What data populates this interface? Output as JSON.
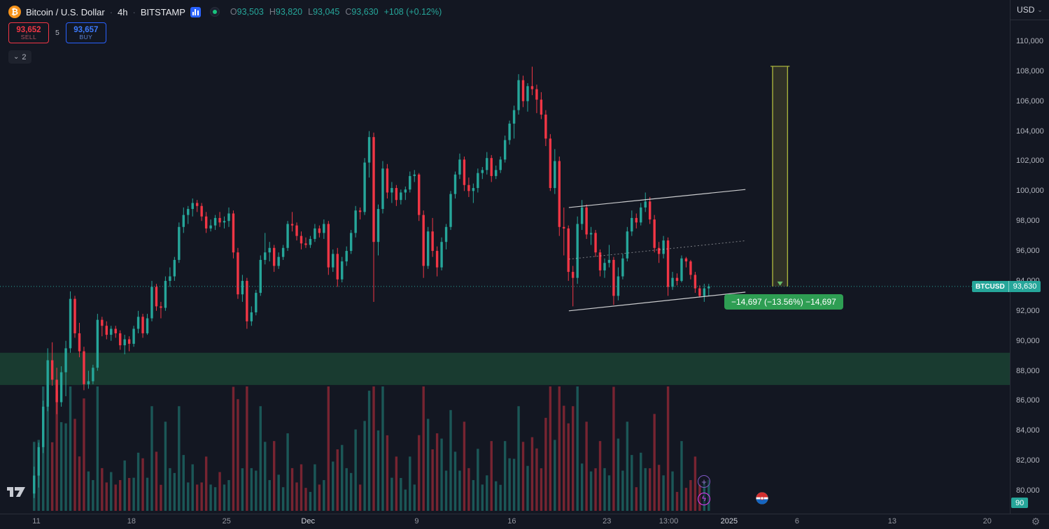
{
  "header": {
    "symbol": "Bitcoin / U.S. Dollar",
    "interval": "4h",
    "exchange": "BITSTAMP",
    "separator": "·",
    "ohlc": {
      "o_label": "O",
      "o": "93,503",
      "h_label": "H",
      "h": "93,820",
      "l_label": "L",
      "l": "93,045",
      "c_label": "C",
      "c": "93,630",
      "change": "+108 (+0.12%)"
    }
  },
  "order_panel": {
    "sell_price": "93,652",
    "sell_label": "SELL",
    "spread": "5",
    "buy_price": "93,657",
    "buy_label": "BUY"
  },
  "drawings_badge": {
    "chevron": "⌄",
    "count": "2"
  },
  "top_right": {
    "currency": "USD",
    "chevron": "⌄"
  },
  "price_label": {
    "symbol": "BTCUSD",
    "price": "93,630"
  },
  "volume_label": "90",
  "measure_label": {
    "text": "−14,697 (−13.56%)  −14,697"
  },
  "icons": {
    "bitcoin": "₿",
    "gear": "⚙",
    "plus": "+",
    "lightning": "ϟ"
  },
  "colors": {
    "background": "#131722",
    "up": "#26a69a",
    "down": "#f23645",
    "vol_up": "rgba(38,166,154,0.45)",
    "vol_down": "rgba(242,54,69,0.45)",
    "zone_fill": "rgba(46,160,87,0.27)",
    "channel_line": "rgba(255,255,255,0.78)",
    "channel_mid": "rgba(255,255,255,0.45)",
    "price_line": "#26a69a",
    "measure_fill": "rgba(167,157,61,0.20)",
    "measure_line": "#a8b23c",
    "measure_arrow": "#66bb6a",
    "sell_red": "#f23645",
    "buy_blue": "#2962ff",
    "label_teal": "#26a69a",
    "measure_label_bg": "#2e9e53"
  },
  "price_scale": {
    "ticks": [
      "110,000",
      "108,000",
      "106,000",
      "104,000",
      "102,000",
      "100,000",
      "98,000",
      "96,000",
      "94,000",
      "92,000",
      "90,000",
      "88,000",
      "86,000",
      "84,000",
      "82,000",
      "80,000"
    ]
  },
  "time_scale": {
    "ticks": [
      {
        "label": "11",
        "day": 1,
        "major": false
      },
      {
        "label": "18",
        "day": 8,
        "major": false
      },
      {
        "label": "25",
        "day": 15,
        "major": false
      },
      {
        "label": "Dec",
        "day": 21,
        "major": true
      },
      {
        "label": "9",
        "day": 29,
        "major": false
      },
      {
        "label": "16",
        "day": 36,
        "major": false
      },
      {
        "label": "23",
        "day": 43,
        "major": false
      },
      {
        "label": "13:00",
        "day": 47.55,
        "major": false
      },
      {
        "label": "2025",
        "day": 52,
        "major": true
      },
      {
        "label": "6",
        "day": 57,
        "major": false
      },
      {
        "label": "13",
        "day": 64,
        "major": false
      },
      {
        "label": "20",
        "day": 71,
        "major": false
      }
    ]
  },
  "chart_data": {
    "type": "candlestick",
    "title": "Bitcoin / U.S. Dollar 4h BITSTAMP",
    "symbol": "BTCUSD",
    "exchange": "BITSTAMP",
    "interval": "4h",
    "current_price": 93630,
    "price_axis": {
      "min": 80000,
      "max": 110000,
      "tick_step": 2000
    },
    "time_axis": {
      "start": "Nov 10 2024",
      "visible_last_candle": "Dec 30 2024",
      "end_label": "Jan 20 2025"
    },
    "candles": [
      [
        79800,
        81600,
        79500,
        81000
      ],
      [
        81000,
        83200,
        80200,
        82900
      ],
      [
        82900,
        86000,
        82500,
        85600
      ],
      [
        85600,
        89500,
        85300,
        88700
      ],
      [
        88700,
        89900,
        87000,
        87400
      ],
      [
        87400,
        88200,
        85100,
        85900
      ],
      [
        85900,
        88300,
        85600,
        87900
      ],
      [
        87900,
        90000,
        86300,
        89500
      ],
      [
        89500,
        93300,
        89200,
        92800
      ],
      [
        92800,
        93000,
        90200,
        90500
      ],
      [
        90500,
        91200,
        88900,
        89300
      ],
      [
        89300,
        89600,
        86700,
        87100
      ],
      [
        87100,
        88000,
        86800,
        87300
      ],
      [
        87300,
        88400,
        87100,
        88200
      ],
      [
        88200,
        91800,
        88000,
        91400
      ],
      [
        91400,
        91600,
        90300,
        91000
      ],
      [
        91000,
        91300,
        90100,
        90400
      ],
      [
        90400,
        91000,
        90000,
        90800
      ],
      [
        90800,
        91000,
        90200,
        90500
      ],
      [
        90500,
        90700,
        89400,
        89700
      ],
      [
        89700,
        90400,
        89100,
        90100
      ],
      [
        90100,
        90300,
        89300,
        89800
      ],
      [
        89800,
        91000,
        89600,
        90800
      ],
      [
        90800,
        92000,
        90500,
        91600
      ],
      [
        91600,
        91800,
        90200,
        90500
      ],
      [
        90500,
        91800,
        90400,
        91500
      ],
      [
        91500,
        94000,
        91300,
        93600
      ],
      [
        93600,
        93800,
        92000,
        92300
      ],
      [
        92300,
        92600,
        91500,
        92200
      ],
      [
        92200,
        94300,
        92000,
        94000
      ],
      [
        94000,
        94900,
        93600,
        94300
      ],
      [
        94300,
        95600,
        94000,
        95400
      ],
      [
        95400,
        97900,
        95200,
        97600
      ],
      [
        97600,
        98900,
        97200,
        98400
      ],
      [
        98400,
        99000,
        97800,
        98800
      ],
      [
        98800,
        99500,
        98300,
        99200
      ],
      [
        99200,
        99400,
        98600,
        99000
      ],
      [
        99000,
        99200,
        98000,
        98300
      ],
      [
        98300,
        98600,
        97200,
        97500
      ],
      [
        97500,
        98100,
        97300,
        97700
      ],
      [
        97700,
        98400,
        97400,
        98200
      ],
      [
        98200,
        98600,
        97600,
        97900
      ],
      [
        97900,
        98300,
        97500,
        98000
      ],
      [
        98000,
        98900,
        97600,
        98500
      ],
      [
        98500,
        98700,
        95500,
        95900
      ],
      [
        95900,
        96200,
        92800,
        93100
      ],
      [
        93100,
        94400,
        92600,
        94000
      ],
      [
        94000,
        94200,
        90800,
        91300
      ],
      [
        91300,
        92300,
        91000,
        91900
      ],
      [
        91900,
        93400,
        91700,
        93200
      ],
      [
        93200,
        95700,
        93000,
        95400
      ],
      [
        95400,
        97200,
        95100,
        95900
      ],
      [
        95900,
        96600,
        95300,
        96200
      ],
      [
        96200,
        96400,
        94600,
        95000
      ],
      [
        95000,
        95900,
        94800,
        95600
      ],
      [
        95600,
        96400,
        95400,
        96200
      ],
      [
        96200,
        98000,
        96000,
        97800
      ],
      [
        97800,
        98600,
        97300,
        97700
      ],
      [
        97700,
        97900,
        96700,
        97000
      ],
      [
        97000,
        97300,
        96100,
        96500
      ],
      [
        96500,
        96900,
        96200,
        96400
      ],
      [
        96400,
        97000,
        96200,
        96800
      ],
      [
        96800,
        97800,
        96600,
        97500
      ],
      [
        97500,
        97700,
        96900,
        97200
      ],
      [
        97200,
        98100,
        96800,
        97800
      ],
      [
        97800,
        98000,
        94400,
        94900
      ],
      [
        94900,
        96100,
        94600,
        95800
      ],
      [
        95800,
        96200,
        93600,
        94100
      ],
      [
        94100,
        95600,
        93900,
        95300
      ],
      [
        95300,
        96300,
        95000,
        96000
      ],
      [
        96000,
        97400,
        95800,
        97200
      ],
      [
        97200,
        99000,
        96900,
        98700
      ],
      [
        98700,
        98900,
        98100,
        98600
      ],
      [
        98600,
        102200,
        98400,
        101900
      ],
      [
        101900,
        104000,
        100900,
        103600
      ],
      [
        103600,
        103900,
        92600,
        96600
      ],
      [
        96600,
        99100,
        95700,
        98800
      ],
      [
        98800,
        102000,
        98500,
        101500
      ],
      [
        101500,
        101800,
        99500,
        99900
      ],
      [
        99900,
        100600,
        99200,
        100200
      ],
      [
        100200,
        100400,
        99000,
        99400
      ],
      [
        99400,
        100100,
        99100,
        99900
      ],
      [
        99900,
        100300,
        99400,
        100100
      ],
      [
        100100,
        101300,
        99900,
        101000
      ],
      [
        101000,
        101400,
        100600,
        101100
      ],
      [
        101100,
        101200,
        98000,
        98400
      ],
      [
        98400,
        98700,
        94200,
        95000
      ],
      [
        95000,
        97600,
        94800,
        97300
      ],
      [
        97300,
        98200,
        95600,
        96000
      ],
      [
        96000,
        96300,
        94300,
        94900
      ],
      [
        94900,
        96900,
        94700,
        96600
      ],
      [
        96600,
        97800,
        96100,
        97600
      ],
      [
        97600,
        100000,
        97400,
        99800
      ],
      [
        99800,
        101300,
        99500,
        101100
      ],
      [
        101100,
        102500,
        100800,
        102100
      ],
      [
        102100,
        102300,
        100000,
        100400
      ],
      [
        100400,
        100900,
        99600,
        100000
      ],
      [
        100000,
        100500,
        99200,
        100200
      ],
      [
        100200,
        101500,
        99900,
        101200
      ],
      [
        101200,
        101600,
        100800,
        101400
      ],
      [
        101400,
        102600,
        101100,
        102200
      ],
      [
        102200,
        102400,
        100600,
        101000
      ],
      [
        101000,
        101700,
        100800,
        101400
      ],
      [
        101400,
        102300,
        101200,
        102100
      ],
      [
        102100,
        103700,
        101900,
        103400
      ],
      [
        103400,
        104700,
        103100,
        104500
      ],
      [
        104500,
        105700,
        103500,
        105400
      ],
      [
        105400,
        107800,
        105100,
        107400
      ],
      [
        107400,
        107700,
        105600,
        106000
      ],
      [
        106000,
        107200,
        105300,
        107000
      ],
      [
        107000,
        108300,
        106400,
        106800
      ],
      [
        106800,
        107100,
        105200,
        106100
      ],
      [
        106100,
        106600,
        104800,
        105100
      ],
      [
        105100,
        105400,
        103000,
        103500
      ],
      [
        103500,
        103800,
        100000,
        100200
      ],
      [
        100200,
        102800,
        99800,
        102000
      ],
      [
        102000,
        102300,
        97000,
        97600
      ],
      [
        97600,
        98900,
        95700,
        97500
      ],
      [
        97500,
        97700,
        94000,
        94600
      ],
      [
        94600,
        95000,
        92300,
        94200
      ],
      [
        94200,
        98300,
        93800,
        97800
      ],
      [
        97800,
        99400,
        97400,
        98900
      ],
      [
        98900,
        99100,
        96800,
        97100
      ],
      [
        97100,
        97600,
        96400,
        97200
      ],
      [
        97200,
        97400,
        95600,
        95900
      ],
      [
        95900,
        96100,
        94300,
        94700
      ],
      [
        94700,
        95500,
        94200,
        95200
      ],
      [
        95200,
        96400,
        94900,
        95400
      ],
      [
        95400,
        95600,
        92400,
        93000
      ],
      [
        93000,
        94900,
        92700,
        94300
      ],
      [
        94300,
        95800,
        94100,
        95500
      ],
      [
        95500,
        97600,
        95300,
        97300
      ],
      [
        97300,
        98700,
        97000,
        98200
      ],
      [
        98200,
        98500,
        97500,
        97900
      ],
      [
        97900,
        99200,
        97700,
        98900
      ],
      [
        98900,
        99900,
        98600,
        99300
      ],
      [
        99300,
        99600,
        97800,
        98100
      ],
      [
        98100,
        98400,
        95900,
        96200
      ],
      [
        96200,
        96600,
        95200,
        95800
      ],
      [
        95800,
        97000,
        95500,
        96700
      ],
      [
        96700,
        96900,
        93000,
        93600
      ],
      [
        93600,
        94600,
        93400,
        94200
      ],
      [
        94200,
        94500,
        93700,
        94000
      ],
      [
        94000,
        95700,
        93900,
        95500
      ],
      [
        95500,
        95600,
        94900,
        95300
      ],
      [
        95300,
        95400,
        94100,
        94400
      ],
      [
        94400,
        94600,
        93200,
        93500
      ],
      [
        93500,
        93700,
        92900,
        93000
      ],
      [
        93000,
        93800,
        92600,
        93500
      ],
      [
        93500,
        93800,
        93000,
        93630
      ]
    ],
    "annotations": {
      "supply_zone": {
        "top_price": 89200,
        "bottom_price": 87050,
        "full_width": true
      },
      "channel": {
        "x1_day": 40.2,
        "x2_day": 53.2,
        "upper": [
          98900,
          100100
        ],
        "middle": [
          95450,
          96680
        ],
        "lower": [
          92000,
          93250
        ]
      },
      "price_range_measure": {
        "from_price": 108327,
        "to_price": 93630,
        "x1_day": 55.2,
        "x2_day": 56.3,
        "change": -14697,
        "change_pct": -13.56
      },
      "current_price_line": 93630
    }
  }
}
